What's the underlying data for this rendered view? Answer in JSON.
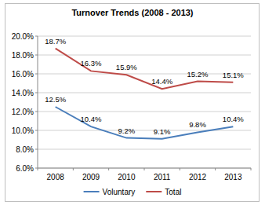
{
  "chart_data": {
    "type": "line",
    "title": "Turnover Trends (2008 - 2013)",
    "categories": [
      "2008",
      "2009",
      "2010",
      "2011",
      "2012",
      "2013"
    ],
    "series": [
      {
        "name": "Voluntary",
        "color": "#4a7ebb",
        "values": [
          12.5,
          10.4,
          9.2,
          9.1,
          9.8,
          10.4
        ],
        "value_labels": [
          "12.5%",
          "10.4%",
          "9.2%",
          "9.1%",
          "9.8%",
          "10.4%"
        ]
      },
      {
        "name": "Total",
        "color": "#be4b48",
        "values": [
          18.7,
          16.3,
          15.9,
          14.4,
          15.2,
          15.1
        ],
        "value_labels": [
          "18.7%",
          "16.3%",
          "15.9%",
          "14.4%",
          "15.2%",
          "15.1%"
        ]
      }
    ],
    "ylim": [
      6,
      20
    ],
    "yticks": [
      {
        "value": 6,
        "label": "6.0%"
      },
      {
        "value": 8,
        "label": "8.0%"
      },
      {
        "value": 10,
        "label": "10.0%"
      },
      {
        "value": 12,
        "label": "12.0%"
      },
      {
        "value": 14,
        "label": "14.0%"
      },
      {
        "value": 16,
        "label": "16.0%"
      },
      {
        "value": 18,
        "label": "18.0%"
      },
      {
        "value": 20,
        "label": "20.0%"
      }
    ],
    "grid": true,
    "legend": "bottom",
    "data_labels": true
  }
}
